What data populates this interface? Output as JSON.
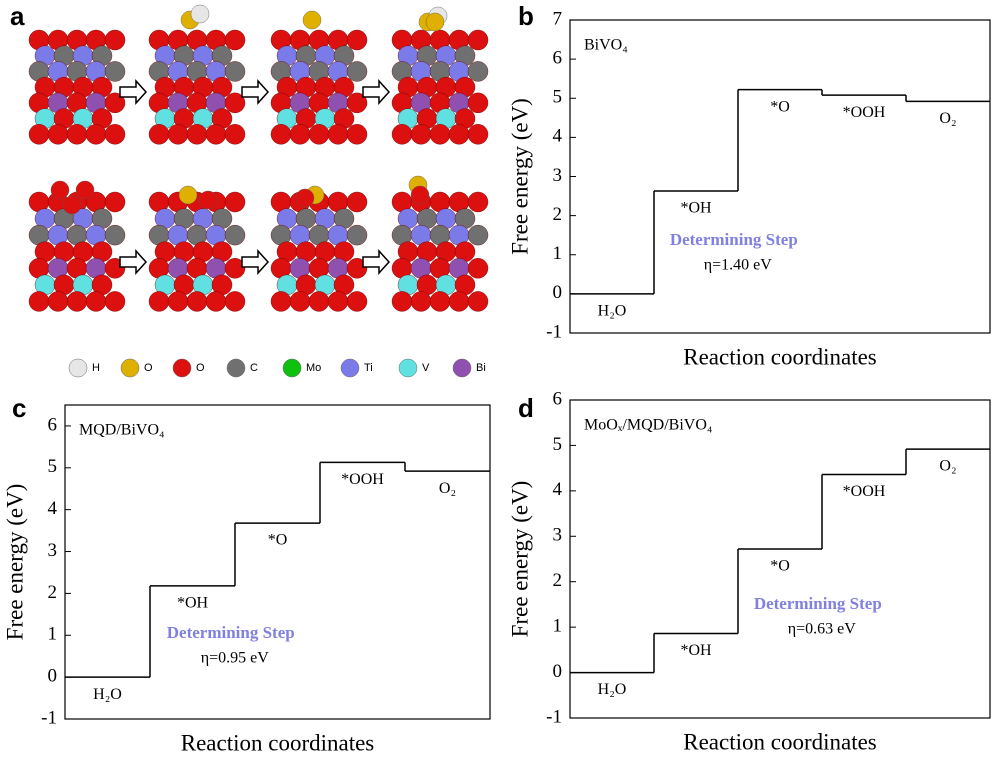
{
  "panel_a": {
    "letter": "a",
    "legend": [
      {
        "label": "H",
        "color": "#e6e6e6"
      },
      {
        "label": "O",
        "color": "#e0b000"
      },
      {
        "label": "O",
        "color": "#dd1010"
      },
      {
        "label": "C",
        "color": "#707070"
      },
      {
        "label": "Mo",
        "color": "#10c010"
      },
      {
        "label": "Ti",
        "color": "#7a7ae8"
      },
      {
        "label": "V",
        "color": "#60e0e0"
      },
      {
        "label": "Bi",
        "color": "#9050b0"
      }
    ]
  },
  "chart_data": [
    {
      "type": "step",
      "letter": "b",
      "title": "BiVO₄",
      "categories": [
        "H₂O",
        "*OH",
        "*O",
        "*OOH",
        "O₂"
      ],
      "values": [
        0,
        2.63,
        5.22,
        5.08,
        4.92
      ],
      "color": "#000000",
      "ylabel": "Free energy (eV)",
      "xlabel": "Reaction coordinates",
      "annotation": "Determining Step",
      "annotation_color": "#8080e0",
      "overpotential": "η=1.40 eV",
      "ylim": [
        -1,
        7
      ],
      "yticks": [
        -1,
        0,
        1,
        2,
        3,
        4,
        5,
        6,
        7
      ]
    },
    {
      "type": "step",
      "letter": "c",
      "title": "MQD/BiVO₄",
      "categories": [
        "H₂O",
        "*OH",
        "*O",
        "*OOH",
        "O₂"
      ],
      "values": [
        0,
        2.18,
        3.68,
        5.13,
        4.92
      ],
      "color": "#000000",
      "ylabel": "Free energy (eV)",
      "xlabel": "Reaction coordinates",
      "annotation": "Determining Step",
      "annotation_color": "#8080e0",
      "overpotential": "η=0.95 eV",
      "ylim": [
        -1,
        6.5
      ],
      "yticks": [
        -1,
        0,
        1,
        2,
        3,
        4,
        5,
        6
      ]
    },
    {
      "type": "step",
      "letter": "d",
      "title": "MoOₓ/MQD/BiVO₄",
      "categories": [
        "H₂O",
        "*OH",
        "*O",
        "*OOH",
        "O₂"
      ],
      "values": [
        0,
        0.86,
        2.72,
        4.36,
        4.92
      ],
      "color": "#000000",
      "ylabel": "Free energy (eV)",
      "xlabel": "Reaction coordinates",
      "annotation": "Determining Step",
      "annotation_color": "#8080e0",
      "overpotential": "η=0.63 eV",
      "ylim": [
        -1,
        6
      ],
      "yticks": [
        -1,
        0,
        1,
        2,
        3,
        4,
        5,
        6
      ]
    }
  ]
}
